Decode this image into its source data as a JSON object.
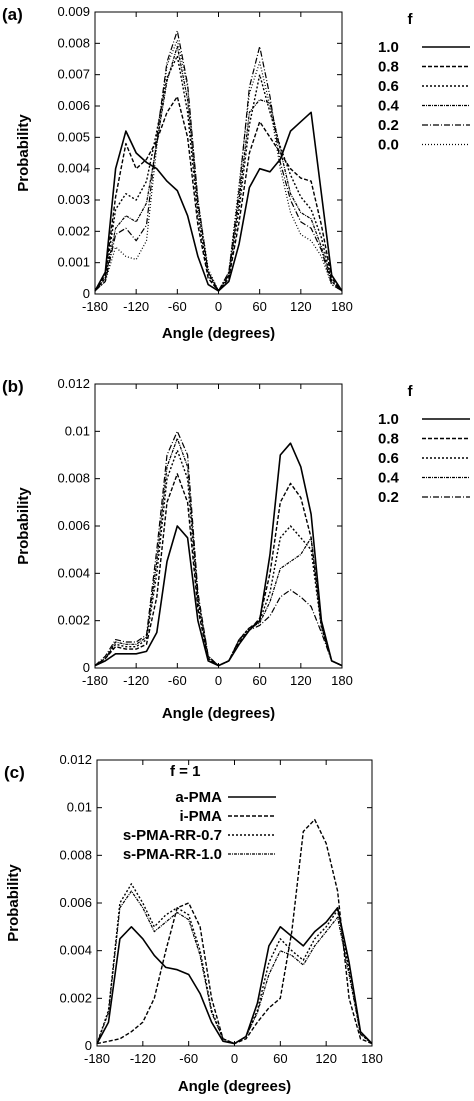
{
  "chart_data": [
    {
      "type": "line",
      "panel_label": "(a)",
      "xlabel": "Angle (degrees)",
      "ylabel": "Probability",
      "xlim": [
        -180,
        180
      ],
      "ylim": [
        0,
        0.009
      ],
      "xticks": [
        "-180",
        "-120",
        "-60",
        "0",
        "60",
        "120",
        "180"
      ],
      "yticks": [
        "0",
        "0.001",
        "0.002",
        "0.003",
        "0.004",
        "0.005",
        "0.006",
        "0.007",
        "0.008",
        "0.009"
      ],
      "legend_title": "f",
      "legend_placement": "right",
      "x": [
        -180,
        -165,
        -150,
        -135,
        -120,
        -105,
        -90,
        -75,
        -60,
        -45,
        -30,
        -15,
        0,
        15,
        30,
        45,
        60,
        75,
        90,
        105,
        120,
        135,
        150,
        165,
        180
      ],
      "series": [
        {
          "name": "1.0",
          "values": [
            0.0001,
            0.0007,
            0.004,
            0.0052,
            0.0045,
            0.0042,
            0.004,
            0.0036,
            0.0033,
            0.0025,
            0.0012,
            0.0003,
            0.0001,
            0.0004,
            0.0016,
            0.0034,
            0.004,
            0.0039,
            0.0043,
            0.0052,
            0.0055,
            0.0058,
            0.0032,
            0.0006,
            0.0001
          ]
        },
        {
          "name": "0.8",
          "values": [
            0.0001,
            0.0006,
            0.0031,
            0.0048,
            0.004,
            0.0043,
            0.0049,
            0.0058,
            0.0063,
            0.005,
            0.0022,
            0.0005,
            0.0001,
            0.0005,
            0.0023,
            0.0045,
            0.0055,
            0.005,
            0.0045,
            0.004,
            0.0037,
            0.0036,
            0.0022,
            0.0005,
            0.0001
          ]
        },
        {
          "name": "0.6",
          "values": [
            0.0001,
            0.0005,
            0.0027,
            0.0032,
            0.003,
            0.0036,
            0.0052,
            0.0069,
            0.0076,
            0.0058,
            0.0025,
            0.0006,
            0.0001,
            0.0006,
            0.0027,
            0.0054,
            0.007,
            0.0058,
            0.0047,
            0.0038,
            0.0031,
            0.0027,
            0.0018,
            0.0004,
            0.0001
          ]
        },
        {
          "name": "0.4",
          "values": [
            0.0001,
            0.0005,
            0.0021,
            0.0025,
            0.0023,
            0.0029,
            0.0048,
            0.0068,
            0.0079,
            0.0062,
            0.0028,
            0.0007,
            0.0001,
            0.0006,
            0.003,
            0.0058,
            0.0062,
            0.0061,
            0.0046,
            0.0032,
            0.0026,
            0.0024,
            0.0015,
            0.0004,
            0.0001
          ]
        },
        {
          "name": "0.2",
          "values": [
            0.0001,
            0.0004,
            0.0019,
            0.0021,
            0.0017,
            0.0022,
            0.005,
            0.0074,
            0.0084,
            0.0067,
            0.003,
            0.0007,
            0.0001,
            0.0007,
            0.0033,
            0.0066,
            0.0079,
            0.0063,
            0.0042,
            0.003,
            0.0023,
            0.0021,
            0.0014,
            0.0003,
            0.0001
          ]
        },
        {
          "name": "0.0",
          "values": [
            0.0001,
            0.0004,
            0.0015,
            0.0012,
            0.0011,
            0.0017,
            0.0047,
            0.0073,
            0.0081,
            0.0066,
            0.003,
            0.0008,
            0.0001,
            0.0007,
            0.0035,
            0.0064,
            0.0074,
            0.006,
            0.004,
            0.0026,
            0.0019,
            0.0017,
            0.0012,
            0.0003,
            0.0001
          ]
        }
      ]
    },
    {
      "type": "line",
      "panel_label": "(b)",
      "xlabel": "Angle (degrees)",
      "ylabel": "Probability",
      "xlim": [
        -180,
        180
      ],
      "ylim": [
        0,
        0.012
      ],
      "xticks": [
        "-180",
        "-120",
        "-60",
        "0",
        "60",
        "120",
        "180"
      ],
      "yticks": [
        "0",
        "0.002",
        "0.004",
        "0.006",
        "0.008",
        "0.01",
        "0.012"
      ],
      "legend_title": "f",
      "legend_placement": "right",
      "x": [
        -180,
        -165,
        -150,
        -135,
        -120,
        -105,
        -90,
        -75,
        -60,
        -45,
        -30,
        -15,
        0,
        15,
        30,
        45,
        60,
        75,
        90,
        105,
        120,
        135,
        150,
        165,
        180
      ],
      "series": [
        {
          "name": "1.0",
          "values": [
            0.0001,
            0.0003,
            0.0006,
            0.0006,
            0.0006,
            0.0007,
            0.0015,
            0.0045,
            0.006,
            0.0055,
            0.002,
            0.0003,
            0.0001,
            0.0003,
            0.001,
            0.0016,
            0.002,
            0.0048,
            0.009,
            0.0095,
            0.0085,
            0.0065,
            0.002,
            0.0003,
            0.0001
          ]
        },
        {
          "name": "0.8",
          "values": [
            0.0001,
            0.0004,
            0.0009,
            0.0008,
            0.0008,
            0.001,
            0.003,
            0.007,
            0.0082,
            0.007,
            0.0025,
            0.0004,
            0.0001,
            0.0003,
            0.0011,
            0.0016,
            0.0021,
            0.004,
            0.007,
            0.0078,
            0.0072,
            0.0055,
            0.0018,
            0.0003,
            0.0001
          ]
        },
        {
          "name": "0.6",
          "values": [
            0.0001,
            0.0004,
            0.001,
            0.0009,
            0.0009,
            0.0012,
            0.004,
            0.008,
            0.0092,
            0.008,
            0.0028,
            0.0004,
            0.0001,
            0.0003,
            0.0012,
            0.0017,
            0.002,
            0.0032,
            0.0055,
            0.006,
            0.0055,
            0.005,
            0.0017,
            0.0003,
            0.0001
          ]
        },
        {
          "name": "0.4",
          "values": [
            0.0001,
            0.0004,
            0.0011,
            0.001,
            0.001,
            0.0013,
            0.0045,
            0.0085,
            0.0097,
            0.0085,
            0.003,
            0.0005,
            0.0001,
            0.0003,
            0.0012,
            0.0017,
            0.0019,
            0.0028,
            0.0042,
            0.0045,
            0.0048,
            0.0055,
            0.0018,
            0.0003,
            0.0001
          ]
        },
        {
          "name": "0.2",
          "values": [
            0.0001,
            0.0005,
            0.0012,
            0.0011,
            0.0011,
            0.0014,
            0.005,
            0.009,
            0.01,
            0.009,
            0.0032,
            0.0005,
            0.0001,
            0.0003,
            0.0012,
            0.0016,
            0.0018,
            0.0022,
            0.003,
            0.0033,
            0.003,
            0.0026,
            0.0015,
            0.0003,
            0.0001
          ]
        }
      ]
    },
    {
      "type": "line",
      "panel_label": "(c)",
      "xlabel": "Angle (degrees)",
      "ylabel": "Probability",
      "xlim": [
        -180,
        180
      ],
      "ylim": [
        0,
        0.012
      ],
      "xticks": [
        "-180",
        "-120",
        "-60",
        "0",
        "60",
        "120",
        "180"
      ],
      "yticks": [
        "0",
        "0.002",
        "0.004",
        "0.006",
        "0.008",
        "0.01",
        "0.012"
      ],
      "legend_title": "f = 1",
      "legend_placement": "top-left",
      "x": [
        -180,
        -165,
        -150,
        -135,
        -120,
        -105,
        -90,
        -75,
        -60,
        -45,
        -30,
        -15,
        0,
        15,
        30,
        45,
        60,
        75,
        90,
        105,
        120,
        135,
        150,
        165,
        180
      ],
      "series": [
        {
          "name": "a-PMA",
          "values": [
            0.0001,
            0.001,
            0.0045,
            0.005,
            0.0045,
            0.0038,
            0.0033,
            0.0032,
            0.003,
            0.0022,
            0.001,
            0.0002,
            0.0001,
            0.0004,
            0.0018,
            0.0042,
            0.005,
            0.0046,
            0.0042,
            0.0048,
            0.0052,
            0.0058,
            0.0035,
            0.0006,
            0.0001
          ]
        },
        {
          "name": "i-PMA",
          "values": [
            0.0001,
            0.0002,
            0.0003,
            0.0006,
            0.001,
            0.002,
            0.004,
            0.0058,
            0.006,
            0.005,
            0.002,
            0.0003,
            0.0001,
            0.0003,
            0.001,
            0.0016,
            0.002,
            0.0048,
            0.009,
            0.0095,
            0.0085,
            0.0065,
            0.002,
            0.0003,
            0.0001
          ]
        },
        {
          "name": "s-PMA-RR-0.7",
          "values": [
            0.0001,
            0.0015,
            0.006,
            0.0068,
            0.006,
            0.005,
            0.0055,
            0.0058,
            0.0055,
            0.004,
            0.0015,
            0.0003,
            0.0001,
            0.0004,
            0.0015,
            0.0035,
            0.0045,
            0.004,
            0.0036,
            0.0045,
            0.005,
            0.0057,
            0.0032,
            0.0005,
            0.0001
          ]
        },
        {
          "name": "s-PMA-RR-1.0",
          "values": [
            0.0001,
            0.0014,
            0.0058,
            0.0065,
            0.0058,
            0.0048,
            0.0052,
            0.0056,
            0.0053,
            0.0038,
            0.0014,
            0.0003,
            0.0001,
            0.0004,
            0.0014,
            0.003,
            0.004,
            0.0038,
            0.0034,
            0.0042,
            0.0048,
            0.0054,
            0.003,
            0.0005,
            0.0001
          ]
        }
      ]
    }
  ],
  "styles": {
    "line_color": "#000000",
    "dashes": [
      "",
      "4,2",
      "2,2",
      "3,1,1,1",
      "6,2,1,2",
      "1,2"
    ],
    "widths": [
      1.6,
      1.4,
      1.4,
      1.2,
      1.2,
      1.2
    ]
  }
}
